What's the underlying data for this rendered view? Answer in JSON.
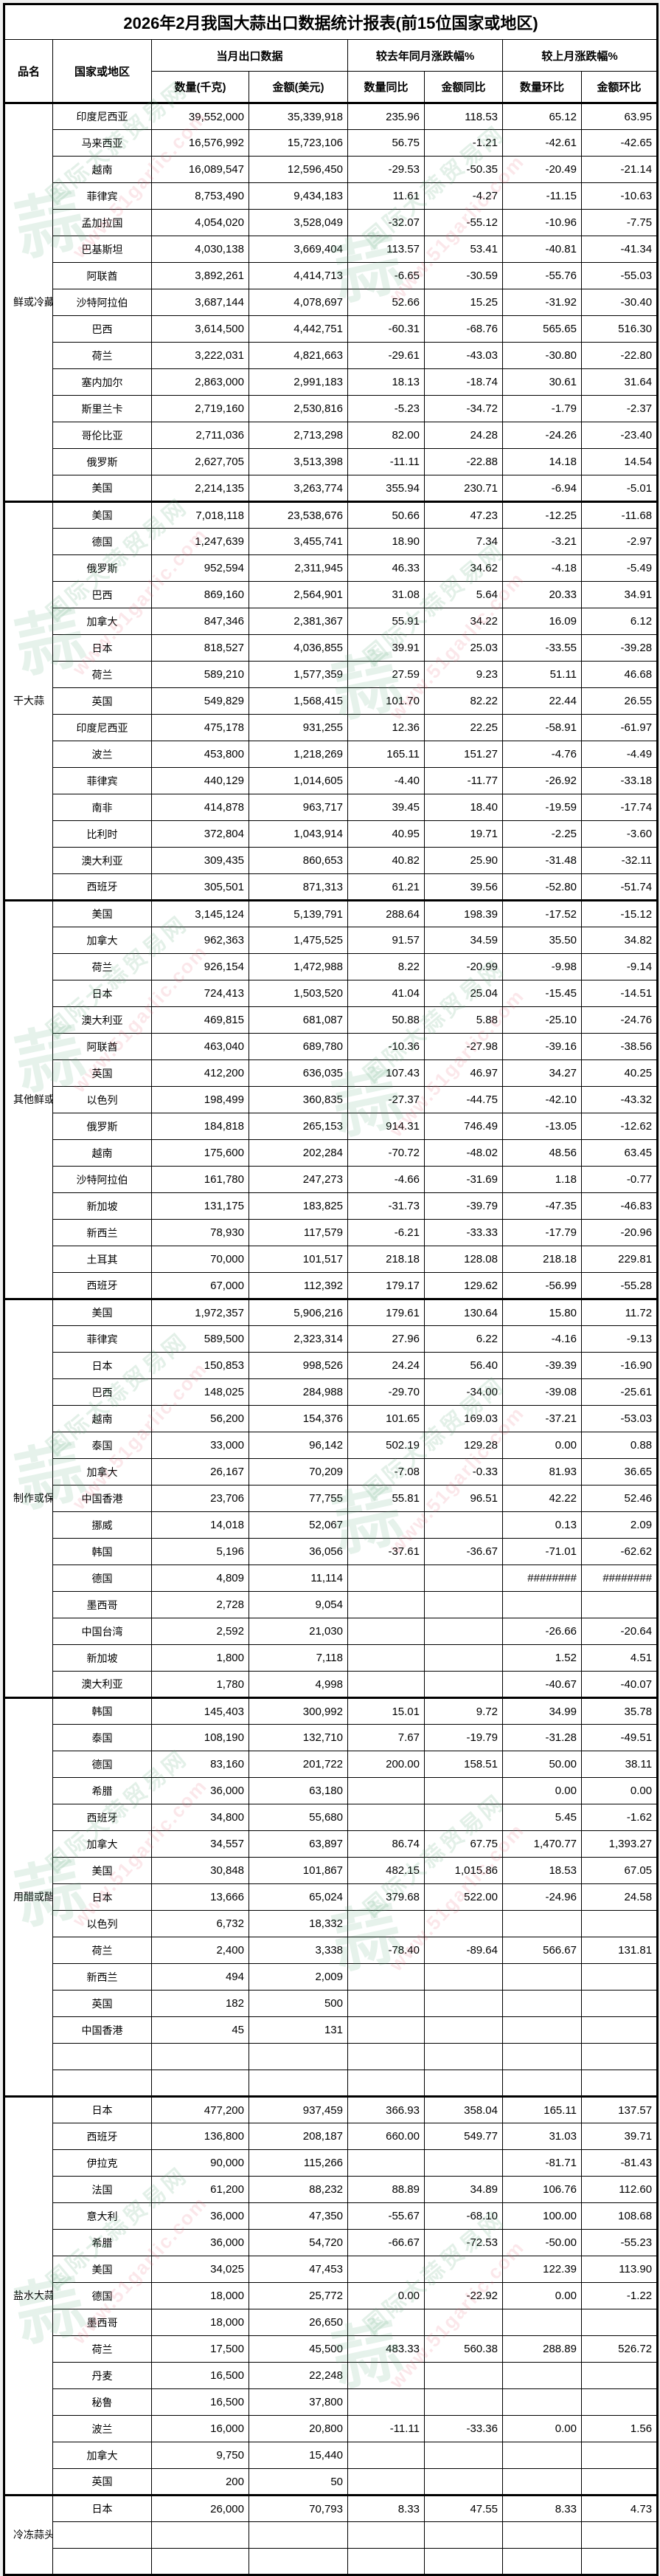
{
  "title": "2026年2月我国大蒜出口数据统计报表(前15位国家或地区)",
  "columns": {
    "product": "品名",
    "country": "国家或地区",
    "group_current": "当月出口数据",
    "group_yoy": "较去年同月涨跌幅%",
    "group_mom": "较上月涨跌幅%",
    "qty": "数量(千克)",
    "amount": "金额(美元)",
    "qty_yoy": "数量同比",
    "amount_yoy": "金额同比",
    "qty_mom": "数量环比",
    "amount_mom": "金额环比"
  },
  "colors": {
    "negative_value": "#ff0000",
    "positive_value": "#000000",
    "border": "#000000",
    "watermark_green": "#50a06e",
    "watermark_pink": "#e15f73"
  },
  "watermark": {
    "logo": "蒜",
    "brand": "国际大蒜贸易网",
    "url": "www.51garlic.com"
  },
  "sections": [
    {
      "name": "鲜或冷藏的蒜头",
      "rows": [
        [
          "印度尼西亚",
          "39,552,000",
          "35,339,918",
          "235.96",
          "118.53",
          "65.12",
          "63.95"
        ],
        [
          "马来西亚",
          "16,576,992",
          "15,723,106",
          "56.75",
          "-1.21",
          "-42.61",
          "-42.65"
        ],
        [
          "越南",
          "16,089,547",
          "12,596,450",
          "-29.53",
          "-50.35",
          "-20.49",
          "-21.14"
        ],
        [
          "菲律宾",
          "8,753,490",
          "9,434,183",
          "11.61",
          "-4.27",
          "-11.15",
          "-10.63"
        ],
        [
          "孟加拉国",
          "4,054,020",
          "3,528,049",
          "-32.07",
          "-55.12",
          "-10.96",
          "-7.75"
        ],
        [
          "巴基斯坦",
          "4,030,138",
          "3,669,404",
          "113.57",
          "53.41",
          "-40.81",
          "-41.34"
        ],
        [
          "阿联酋",
          "3,892,261",
          "4,414,713",
          "-6.65",
          "-30.59",
          "-55.76",
          "-55.03"
        ],
        [
          "沙特阿拉伯",
          "3,687,144",
          "4,078,697",
          "52.66",
          "15.25",
          "-31.92",
          "-30.40"
        ],
        [
          "巴西",
          "3,614,500",
          "4,442,751",
          "-60.31",
          "-68.76",
          "565.65",
          "516.30"
        ],
        [
          "荷兰",
          "3,222,031",
          "4,821,663",
          "-29.61",
          "-43.03",
          "-30.80",
          "-22.80"
        ],
        [
          "塞内加尔",
          "2,863,000",
          "2,991,183",
          "18.13",
          "-18.74",
          "30.61",
          "31.64"
        ],
        [
          "斯里兰卡",
          "2,719,160",
          "2,530,816",
          "-5.23",
          "-34.72",
          "-1.79",
          "-2.37"
        ],
        [
          "哥伦比亚",
          "2,711,036",
          "2,713,298",
          "82.00",
          "24.28",
          "-24.26",
          "-23.40"
        ],
        [
          "俄罗斯",
          "2,627,705",
          "3,513,398",
          "-11.11",
          "-22.88",
          "14.18",
          "14.54"
        ],
        [
          "美国",
          "2,214,135",
          "3,263,774",
          "355.94",
          "230.71",
          "-6.94",
          "-5.01"
        ]
      ]
    },
    {
      "name": "干大蒜",
      "rows": [
        [
          "美国",
          "7,018,118",
          "23,538,676",
          "50.66",
          "47.23",
          "-12.25",
          "-11.68"
        ],
        [
          "德国",
          "1,247,639",
          "3,455,741",
          "18.90",
          "7.34",
          "-3.21",
          "-2.97"
        ],
        [
          "俄罗斯",
          "952,594",
          "2,311,945",
          "46.33",
          "34.62",
          "-4.18",
          "-5.49"
        ],
        [
          "巴西",
          "869,160",
          "2,564,901",
          "31.08",
          "5.64",
          "20.33",
          "34.91"
        ],
        [
          "加拿大",
          "847,346",
          "2,381,367",
          "55.91",
          "34.22",
          "16.09",
          "6.12"
        ],
        [
          "日本",
          "818,527",
          "4,036,855",
          "39.91",
          "25.03",
          "-33.55",
          "-39.28"
        ],
        [
          "荷兰",
          "589,210",
          "1,577,359",
          "27.59",
          "9.23",
          "51.11",
          "46.68"
        ],
        [
          "英国",
          "549,829",
          "1,568,415",
          "101.70",
          "82.22",
          "22.44",
          "26.55"
        ],
        [
          "印度尼西亚",
          "475,178",
          "931,255",
          "12.36",
          "22.25",
          "-58.91",
          "-61.97"
        ],
        [
          "波兰",
          "453,800",
          "1,218,269",
          "165.11",
          "151.27",
          "-4.76",
          "-4.49"
        ],
        [
          "菲律宾",
          "440,129",
          "1,014,605",
          "-4.40",
          "-11.77",
          "-26.92",
          "-33.18"
        ],
        [
          "南非",
          "414,878",
          "963,717",
          "39.45",
          "18.40",
          "-19.59",
          "-17.74"
        ],
        [
          "比利时",
          "372,804",
          "1,043,914",
          "40.95",
          "19.71",
          "-2.25",
          "-3.60"
        ],
        [
          "澳大利亚",
          "309,435",
          "860,653",
          "40.82",
          "25.90",
          "-31.48",
          "-32.11"
        ],
        [
          "西班牙",
          "305,501",
          "871,313",
          "61.21",
          "39.56",
          "-52.80",
          "-51.74"
        ]
      ]
    },
    {
      "name": "其他鲜或冷藏的大蒜",
      "rows": [
        [
          "美国",
          "3,145,124",
          "5,139,791",
          "288.64",
          "198.39",
          "-17.52",
          "-15.12"
        ],
        [
          "加拿大",
          "962,363",
          "1,475,525",
          "91.57",
          "34.59",
          "35.50",
          "34.82"
        ],
        [
          "荷兰",
          "926,154",
          "1,472,988",
          "8.22",
          "-20.99",
          "-9.98",
          "-9.14"
        ],
        [
          "日本",
          "724,413",
          "1,503,520",
          "41.04",
          "25.04",
          "-15.45",
          "-14.51"
        ],
        [
          "澳大利亚",
          "469,815",
          "681,087",
          "50.88",
          "5.88",
          "-25.10",
          "-24.76"
        ],
        [
          "阿联酋",
          "463,040",
          "689,780",
          "-10.36",
          "-27.98",
          "-39.16",
          "-38.56"
        ],
        [
          "英国",
          "412,200",
          "636,035",
          "107.43",
          "46.97",
          "34.27",
          "40.25"
        ],
        [
          "以色列",
          "198,499",
          "360,835",
          "-27.37",
          "-44.75",
          "-42.10",
          "-43.32"
        ],
        [
          "俄罗斯",
          "184,818",
          "265,153",
          "914.31",
          "746.49",
          "-13.05",
          "-12.62"
        ],
        [
          "越南",
          "175,600",
          "202,284",
          "-70.72",
          "-48.02",
          "48.56",
          "63.45"
        ],
        [
          "沙特阿拉伯",
          "161,780",
          "247,273",
          "-4.66",
          "-31.69",
          "1.18",
          "-0.77"
        ],
        [
          "新加坡",
          "131,175",
          "183,825",
          "-31.73",
          "-39.79",
          "-47.35",
          "-46.83"
        ],
        [
          "新西兰",
          "78,930",
          "117,579",
          "-6.21",
          "-33.33",
          "-17.79",
          "-20.96"
        ],
        [
          "土耳其",
          "70,000",
          "101,517",
          "218.18",
          "128.08",
          "218.18",
          "229.81"
        ],
        [
          "西班牙",
          "67,000",
          "112,392",
          "179.17",
          "129.62",
          "-56.99",
          "-55.28"
        ]
      ]
    },
    {
      "name": "制作或保藏的蒜制品",
      "rows": [
        [
          "美国",
          "1,972,357",
          "5,906,216",
          "179.61",
          "130.64",
          "15.80",
          "11.72"
        ],
        [
          "菲律宾",
          "589,500",
          "2,323,314",
          "27.96",
          "6.22",
          "-4.16",
          "-9.13"
        ],
        [
          "日本",
          "150,853",
          "998,526",
          "24.24",
          "56.40",
          "-39.39",
          "-16.90"
        ],
        [
          "巴西",
          "148,025",
          "284,988",
          "-29.70",
          "-34.00",
          "-39.08",
          "-25.61"
        ],
        [
          "越南",
          "56,200",
          "154,376",
          "101.65",
          "169.03",
          "-37.21",
          "-53.03"
        ],
        [
          "泰国",
          "33,000",
          "96,142",
          "502.19",
          "129.28",
          "0.00",
          "0.88"
        ],
        [
          "加拿大",
          "26,167",
          "70,209",
          "-7.08",
          "-0.33",
          "81.93",
          "36.65"
        ],
        [
          "中国香港",
          "23,706",
          "77,755",
          "55.81",
          "96.51",
          "42.22",
          "52.46"
        ],
        [
          "挪威",
          "14,018",
          "52,067",
          "",
          "",
          "0.13",
          "2.09"
        ],
        [
          "韩国",
          "5,196",
          "36,056",
          "-37.61",
          "-36.67",
          "-71.01",
          "-62.62"
        ],
        [
          "德国",
          "4,809",
          "11,114",
          "",
          "",
          "########",
          "########"
        ],
        [
          "墨西哥",
          "2,728",
          "9,054",
          "",
          "",
          "",
          ""
        ],
        [
          "中国台湾",
          "2,592",
          "21,030",
          "",
          "",
          "-26.66",
          "-20.64"
        ],
        [
          "新加坡",
          "1,800",
          "7,118",
          "",
          "",
          "1.52",
          "4.51"
        ],
        [
          "澳大利亚",
          "1,780",
          "4,998",
          "",
          "",
          "-40.67",
          "-40.07"
        ]
      ]
    },
    {
      "name": "用醋或醋酸制作或保藏的大蒜",
      "rows": [
        [
          "韩国",
          "145,403",
          "300,992",
          "15.01",
          "9.72",
          "34.99",
          "35.78"
        ],
        [
          "泰国",
          "108,190",
          "132,710",
          "7.67",
          "-19.79",
          "-31.28",
          "-49.51"
        ],
        [
          "德国",
          "83,160",
          "201,722",
          "200.00",
          "158.51",
          "50.00",
          "38.11"
        ],
        [
          "希腊",
          "36,000",
          "63,180",
          "",
          "",
          "0.00",
          "0.00"
        ],
        [
          "西班牙",
          "34,800",
          "55,680",
          "",
          "",
          "5.45",
          "-1.62"
        ],
        [
          "加拿大",
          "34,557",
          "63,897",
          "86.74",
          "67.75",
          "1,470.77",
          "1,393.27"
        ],
        [
          "美国",
          "30,848",
          "101,867",
          "482.15",
          "1,015.86",
          "18.53",
          "67.05"
        ],
        [
          "日本",
          "13,666",
          "65,024",
          "379.68",
          "522.00",
          "-24.96",
          "24.58"
        ],
        [
          "以色列",
          "6,732",
          "18,332",
          "",
          "",
          "",
          ""
        ],
        [
          "荷兰",
          "2,400",
          "3,338",
          "-78.40",
          "-89.64",
          "566.67",
          "131.81"
        ],
        [
          "新西兰",
          "494",
          "2,009",
          "",
          "",
          "",
          ""
        ],
        [
          "英国",
          "182",
          "500",
          "",
          "",
          "",
          ""
        ],
        [
          "中国香港",
          "45",
          "131",
          "",
          "",
          "",
          ""
        ],
        [
          "",
          "",
          "",
          "",
          "",
          "",
          ""
        ],
        [
          "",
          "",
          "",
          "",
          "",
          "",
          ""
        ]
      ]
    },
    {
      "name": "盐水大蒜",
      "rows": [
        [
          "日本",
          "477,200",
          "937,459",
          "366.93",
          "358.04",
          "165.11",
          "137.57"
        ],
        [
          "西班牙",
          "136,800",
          "208,187",
          "660.00",
          "549.77",
          "31.03",
          "39.71"
        ],
        [
          "伊拉克",
          "90,000",
          "115,266",
          "",
          "",
          "-81.71",
          "-81.43"
        ],
        [
          "法国",
          "61,200",
          "88,232",
          "88.89",
          "34.89",
          "106.76",
          "112.60"
        ],
        [
          "意大利",
          "36,000",
          "47,350",
          "-55.67",
          "-68.10",
          "100.00",
          "108.68"
        ],
        [
          "希腊",
          "36,000",
          "54,720",
          "-66.67",
          "-72.53",
          "-50.00",
          "-55.23"
        ],
        [
          "美国",
          "34,025",
          "47,453",
          "",
          "",
          "122.39",
          "113.90"
        ],
        [
          "德国",
          "18,000",
          "25,772",
          "0.00",
          "-22.92",
          "0.00",
          "-1.22"
        ],
        [
          "墨西哥",
          "18,000",
          "26,650",
          "",
          "",
          "",
          ""
        ],
        [
          "荷兰",
          "17,500",
          "45,500",
          "483.33",
          "560.38",
          "288.89",
          "526.72"
        ],
        [
          "丹麦",
          "16,500",
          "22,248",
          "",
          "",
          "",
          ""
        ],
        [
          "秘鲁",
          "16,500",
          "37,800",
          "",
          "",
          "",
          ""
        ],
        [
          "波兰",
          "16,000",
          "20,800",
          "-11.11",
          "-33.36",
          "0.00",
          "1.56"
        ],
        [
          "加拿大",
          "9,750",
          "15,440",
          "",
          "",
          "",
          ""
        ],
        [
          "英国",
          "200",
          "50",
          "",
          "",
          "",
          ""
        ]
      ]
    },
    {
      "name": "冷冻蒜头",
      "rows": [
        [
          "日本",
          "26,000",
          "70,793",
          "8.33",
          "47.55",
          "8.33",
          "4.73"
        ],
        [
          "",
          "",
          "",
          "",
          "",
          "",
          ""
        ],
        [
          "",
          "",
          "",
          "",
          "",
          "",
          ""
        ]
      ]
    }
  ]
}
